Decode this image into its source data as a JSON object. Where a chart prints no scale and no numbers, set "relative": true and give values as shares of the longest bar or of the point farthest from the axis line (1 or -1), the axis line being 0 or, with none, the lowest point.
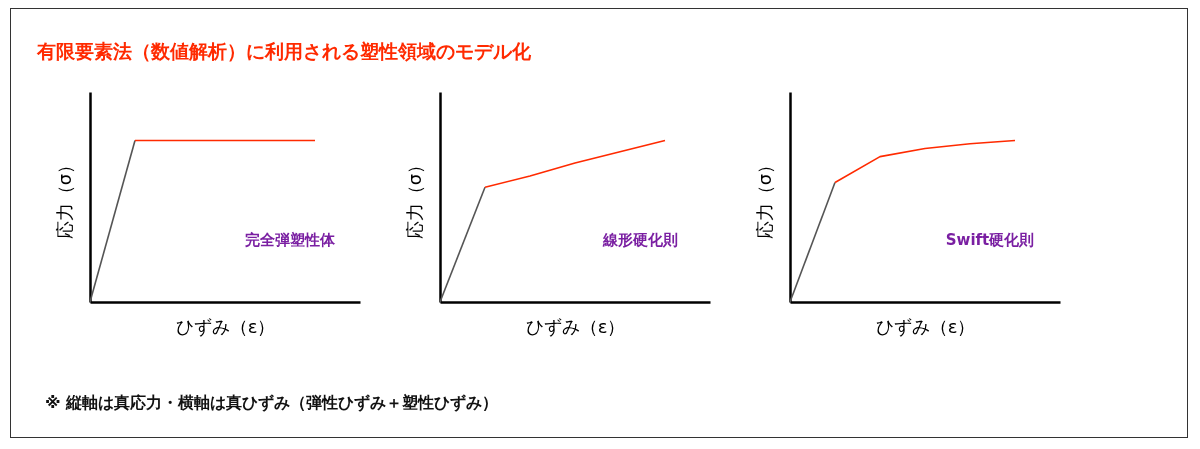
{
  "chart_data": [
    {
      "type": "line",
      "title": "有限要素法（数値解析）に利用される塑性領域のモデル化",
      "xlabel": "ひずみ（ε）",
      "ylabel": "応力（σ）",
      "relative": true,
      "categories": [
        null,
        null,
        null,
        null,
        null,
        null
      ],
      "grid": false,
      "line_style": "solid",
      "annotations": [
        "完全弾塑性体",
        "※ 縦軸は真応力・横軸は真ひずみ（弾性ひずみ＋塑性ひずみ）"
      ],
      "series": [
        {
          "color": "#555555",
          "values": [
            0,
            1,
            null,
            null,
            null,
            null
          ]
        },
        {
          "color": "#ff2a00",
          "values": [
            null,
            1,
            1,
            1,
            1,
            1
          ]
        }
      ]
    },
    {
      "type": "line",
      "xlabel": "ひずみ（ε）",
      "ylabel": "応力（σ）",
      "relative": true,
      "categories": [
        null,
        null,
        null,
        null,
        null,
        null
      ],
      "grid": false,
      "line_style": "solid",
      "annotations": [
        "線形硬化則"
      ],
      "series": [
        {
          "color": "#555555",
          "values": [
            0,
            0.71,
            null,
            null,
            null,
            null
          ]
        },
        {
          "color": "#ff2a00",
          "values": [
            null,
            0.71,
            0.78,
            0.86,
            0.93,
            1
          ]
        }
      ]
    },
    {
      "type": "line",
      "xlabel": "ひずみ（ε）",
      "ylabel": "応力（σ）",
      "relative": true,
      "categories": [
        null,
        null,
        null,
        null,
        null,
        null
      ],
      "grid": false,
      "line_style": "solid",
      "annotations": [
        "Swift硬化則"
      ],
      "series": [
        {
          "color": "#555555",
          "values": [
            0,
            0.74,
            null,
            null,
            null,
            null
          ]
        },
        {
          "color": "#ff2a00",
          "values": [
            null,
            0.74,
            0.9,
            0.95,
            0.98,
            1
          ]
        }
      ]
    }
  ]
}
